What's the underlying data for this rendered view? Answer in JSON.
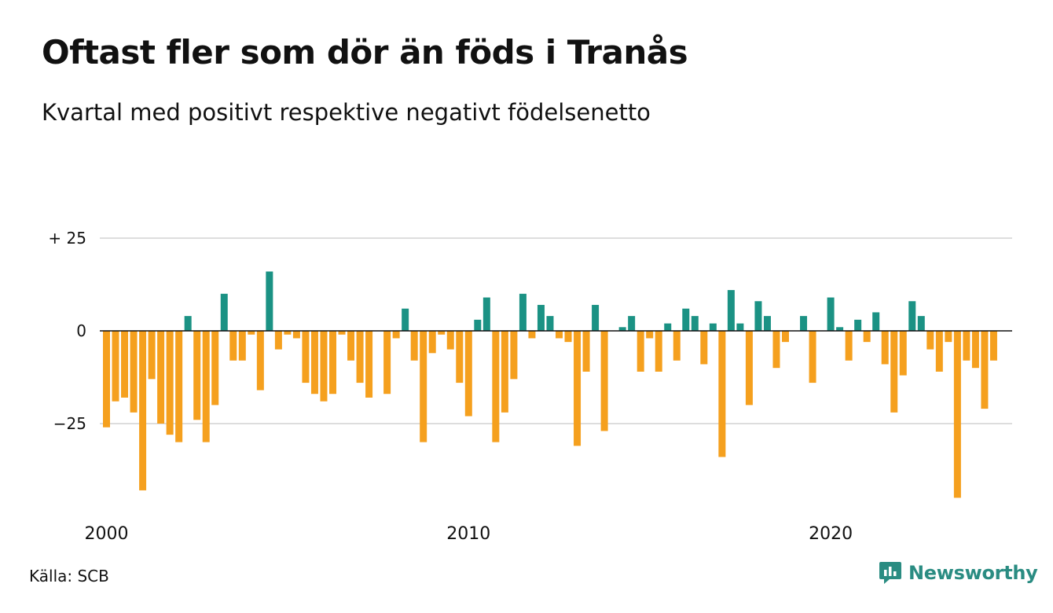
{
  "title": "Oftast fler som dör än föds i Tranås",
  "subtitle": "Kvartal med positivt respektive negativt födelsenetto",
  "source": "Källa: SCB",
  "brand": "Newsworthy",
  "colors": {
    "positive": "#1b9284",
    "negative": "#f5a01e",
    "grid": "#dddddd",
    "zero": "#111111",
    "brand": "#2a8c82"
  },
  "chart_data": {
    "type": "bar",
    "x_start": "2000 Q1",
    "x_ticks": [
      {
        "label": "2000",
        "index": 0
      },
      {
        "label": "2010",
        "index": 40
      },
      {
        "label": "2020",
        "index": 80
      }
    ],
    "y_ticks": [
      {
        "label": "+ 25",
        "value": 25
      },
      {
        "label": "0",
        "value": 0
      },
      {
        "label": "−25",
        "value": -25
      }
    ],
    "ylim": [
      -45,
      25
    ],
    "values": [
      -26,
      -19,
      -18,
      -22,
      -43,
      -13,
      -25,
      -28,
      -30,
      4,
      -24,
      -30,
      -20,
      10,
      -8,
      -8,
      -1,
      -16,
      16,
      -5,
      -1,
      -2,
      -14,
      -17,
      -19,
      -17,
      -1,
      -8,
      -14,
      -18,
      0,
      -17,
      -2,
      6,
      -8,
      -30,
      -6,
      -1,
      -5,
      -14,
      -23,
      3,
      9,
      -30,
      -22,
      -13,
      10,
      -2,
      7,
      4,
      -2,
      -3,
      -31,
      -11,
      7,
      -27,
      0,
      1,
      4,
      -11,
      -2,
      -11,
      2,
      -8,
      6,
      4,
      -9,
      2,
      -34,
      11,
      2,
      -20,
      8,
      4,
      -10,
      -3,
      0,
      4,
      -14,
      0,
      9,
      1,
      -8,
      3,
      -3,
      5,
      -9,
      -22,
      -12,
      8,
      4,
      -5,
      -11,
      -3,
      -45,
      -8,
      -10,
      -21,
      -8
    ]
  }
}
